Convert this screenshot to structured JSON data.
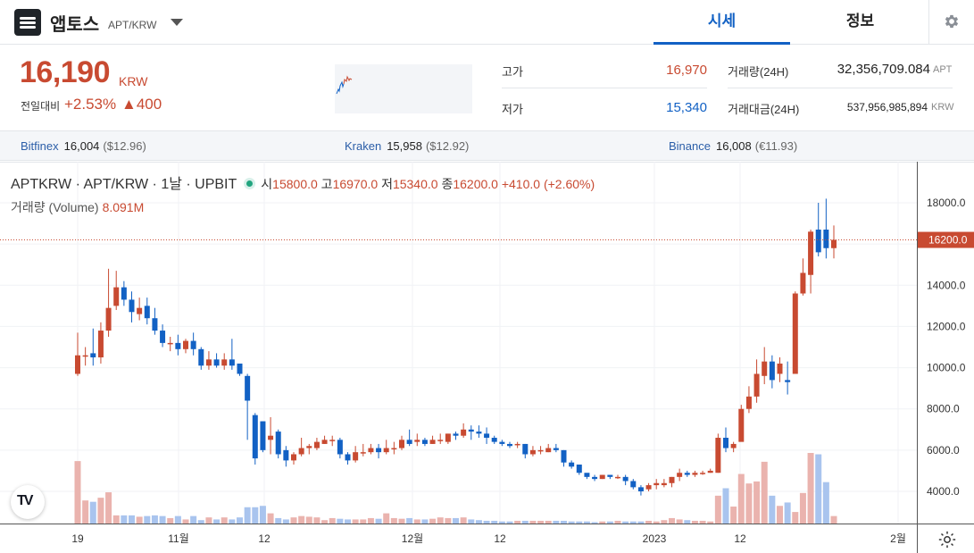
{
  "header": {
    "coin_name": "앱토스",
    "pair": "APT/KRW",
    "tabs": [
      "시세",
      "정보"
    ]
  },
  "price": {
    "current": "16,190",
    "unit": "KRW",
    "change_label": "전일대비",
    "change_rate": "+2.53%",
    "change_abs": "▲400"
  },
  "stats": {
    "high_label": "고가",
    "high": "16,970",
    "low_label": "저가",
    "low": "15,340",
    "volume_label": "거래량(24H)",
    "volume": "32,356,709.084",
    "volume_unit": "APT",
    "amount_label": "거래대금(24H)",
    "amount": "537,956,985,894",
    "amount_unit": "KRW"
  },
  "exchanges": [
    {
      "name": "Bitfinex",
      "price": "16,004",
      "sub": "($12.96)"
    },
    {
      "name": "Kraken",
      "price": "15,958",
      "sub": "($12.92)"
    },
    {
      "name": "Binance",
      "price": "16,008",
      "sub": "(€11.93)"
    }
  ],
  "colors": {
    "up": "#c84a31",
    "down": "#1261c4",
    "accent": "#1261c4"
  },
  "legend": {
    "symbol": "APTKRW · APT/KRW · 1날 · UPBIT",
    "open_k": "시",
    "open": "15800.0",
    "high_k": "고",
    "high": "16970.0",
    "low_k": "저",
    "low": "15340.0",
    "close_k": "종",
    "close": "16200.0",
    "change": "+410.0 (+2.60%)",
    "volume_label": "거래량 (Volume)",
    "volume_value": "8.091M"
  },
  "chart_data": {
    "type": "candlestick",
    "last_price_label": "16200.0",
    "y_ticks": [
      "18000.0",
      "16000.0",
      "14000.0",
      "12000.0",
      "10000.0",
      "8000.0",
      "6000.0",
      "4000.0"
    ],
    "x_ticks": [
      "19",
      "11월",
      "12",
      "12월",
      "12",
      "2023",
      "12",
      "2월"
    ],
    "ylim": [
      3000,
      19000
    ],
    "candles": [
      [
        9700,
        10600,
        9600,
        11700
      ],
      [
        10600,
        10600,
        10100,
        11000
      ],
      [
        10700,
        10500,
        10100,
        11900
      ],
      [
        10500,
        11800,
        10200,
        12200
      ],
      [
        11800,
        12900,
        11500,
        14800
      ],
      [
        13000,
        13900,
        12800,
        14700
      ],
      [
        13900,
        13300,
        13000,
        14200
      ],
      [
        13300,
        12700,
        12200,
        13700
      ],
      [
        12600,
        12900,
        12300,
        13400
      ],
      [
        13000,
        12400,
        12100,
        13400
      ],
      [
        12400,
        11800,
        11600,
        12900
      ],
      [
        11800,
        11200,
        11000,
        12100
      ],
      [
        11200,
        11200,
        10800,
        11500
      ],
      [
        11200,
        10900,
        10600,
        11600
      ],
      [
        10900,
        11300,
        10700,
        11400
      ],
      [
        11300,
        10900,
        10600,
        11700
      ],
      [
        10900,
        10100,
        9900,
        11000
      ],
      [
        10100,
        10400,
        9900,
        10800
      ],
      [
        10400,
        10100,
        10000,
        10700
      ],
      [
        10100,
        10400,
        9900,
        10700
      ],
      [
        10400,
        10100,
        9900,
        11400
      ],
      [
        10200,
        9700,
        9600,
        10200
      ],
      [
        9600,
        8400,
        6500,
        9700
      ],
      [
        7700,
        5600,
        5300,
        7800
      ],
      [
        7400,
        6000,
        5900,
        7400
      ],
      [
        6500,
        6700,
        5800,
        7600
      ],
      [
        6900,
        5800,
        5600,
        7000
      ],
      [
        6000,
        5500,
        5200,
        6200
      ],
      [
        5500,
        5800,
        5300,
        5900
      ],
      [
        5800,
        6100,
        5700,
        6600
      ],
      [
        6100,
        6200,
        5800,
        6300
      ],
      [
        6100,
        6400,
        6000,
        6600
      ],
      [
        6300,
        6500,
        6300,
        6700
      ],
      [
        6500,
        6500,
        6200,
        6700
      ],
      [
        6500,
        5800,
        5600,
        6600
      ],
      [
        5800,
        5500,
        5300,
        5900
      ],
      [
        5500,
        5900,
        5400,
        6200
      ],
      [
        5900,
        5900,
        5700,
        6300
      ],
      [
        5900,
        6100,
        5800,
        6300
      ],
      [
        6100,
        5900,
        5600,
        6300
      ],
      [
        5900,
        6100,
        5800,
        6500
      ],
      [
        6100,
        6100,
        5800,
        6400
      ],
      [
        6100,
        6500,
        6000,
        6700
      ],
      [
        6500,
        6300,
        6200,
        7000
      ],
      [
        6400,
        6500,
        6200,
        6800
      ],
      [
        6500,
        6300,
        6200,
        6600
      ],
      [
        6300,
        6500,
        6300,
        6700
      ],
      [
        6500,
        6500,
        6300,
        6800
      ],
      [
        6400,
        6800,
        6300,
        6800
      ],
      [
        6800,
        6700,
        6500,
        6900
      ],
      [
        6700,
        7000,
        6600,
        7300
      ],
      [
        7000,
        6900,
        6500,
        7200
      ],
      [
        6900,
        6800,
        6600,
        7200
      ],
      [
        6800,
        6600,
        6300,
        7100
      ],
      [
        6600,
        6400,
        6300,
        6700
      ],
      [
        6400,
        6300,
        6200,
        6500
      ],
      [
        6300,
        6200,
        6100,
        6400
      ],
      [
        6300,
        6300,
        6100,
        6400
      ],
      [
        6300,
        5800,
        5600,
        6300
      ],
      [
        5800,
        6000,
        5700,
        6200
      ],
      [
        6000,
        6000,
        5800,
        6200
      ],
      [
        5900,
        6100,
        5900,
        6300
      ],
      [
        6100,
        6000,
        5900,
        6300
      ],
      [
        6000,
        5400,
        5200,
        6000
      ],
      [
        5400,
        5200,
        5100,
        5500
      ],
      [
        5300,
        4900,
        4800,
        5300
      ],
      [
        4900,
        4700,
        4600,
        4800
      ],
      [
        4700,
        4600,
        4500,
        4800
      ],
      [
        4600,
        4800,
        4600,
        4800
      ],
      [
        4800,
        4700,
        4600,
        4800
      ],
      [
        4700,
        4700,
        4600,
        4800
      ],
      [
        4700,
        4500,
        4300,
        4800
      ],
      [
        4500,
        4200,
        4100,
        4600
      ],
      [
        4200,
        4000,
        3800,
        4300
      ],
      [
        4100,
        4300,
        4000,
        4400
      ],
      [
        4300,
        4400,
        4100,
        4600
      ],
      [
        4300,
        4400,
        4200,
        4600
      ],
      [
        4400,
        4700,
        4200,
        4700
      ],
      [
        4700,
        4900,
        4500,
        5100
      ],
      [
        4900,
        4800,
        4700,
        5000
      ],
      [
        4800,
        4900,
        4700,
        5000
      ],
      [
        4900,
        4900,
        4800,
        5000
      ],
      [
        4900,
        5000,
        4900,
        5100
      ],
      [
        4900,
        6600,
        4900,
        6800
      ],
      [
        6600,
        6100,
        5900,
        7100
      ],
      [
        6100,
        6300,
        5900,
        6400
      ],
      [
        6400,
        8000,
        6500,
        8200
      ],
      [
        8000,
        8600,
        7800,
        9100
      ],
      [
        8600,
        9700,
        8300,
        10400
      ],
      [
        9600,
        10300,
        9200,
        11000
      ],
      [
        10300,
        9400,
        9000,
        10600
      ],
      [
        9700,
        10200,
        9300,
        10500
      ],
      [
        9400,
        9300,
        8700,
        10300
      ],
      [
        9700,
        13600,
        9800,
        13700
      ],
      [
        13600,
        14600,
        13500,
        15300
      ],
      [
        14500,
        16600,
        13600,
        16700
      ],
      [
        16700,
        15600,
        15400,
        18000
      ],
      [
        16700,
        15800,
        15300,
        18200
      ],
      [
        15800,
        16200,
        15300,
        16900
      ]
    ],
    "volumes": [
      4600,
      1700,
      1600,
      1900,
      2300,
      600,
      600,
      600,
      500,
      550,
      600,
      550,
      400,
      550,
      300,
      550,
      250,
      450,
      300,
      450,
      300,
      450,
      1200,
      1200,
      1300,
      750,
      400,
      300,
      450,
      550,
      500,
      450,
      250,
      400,
      350,
      300,
      300,
      300,
      400,
      350,
      750,
      400,
      350,
      400,
      300,
      300,
      350,
      450,
      400,
      400,
      450,
      300,
      250,
      200,
      200,
      150,
      150,
      200,
      200,
      200,
      200,
      200,
      200,
      200,
      150,
      150,
      150,
      100,
      150,
      150,
      200,
      150,
      150,
      150,
      200,
      150,
      250,
      400,
      300,
      250,
      200,
      200,
      150,
      2050,
      2600,
      1250,
      3650,
      2950,
      3100,
      4550,
      2050,
      1300,
      1550,
      850,
      2250,
      5200,
      5100,
      3050,
      550
    ],
    "volume_max": 5200
  }
}
